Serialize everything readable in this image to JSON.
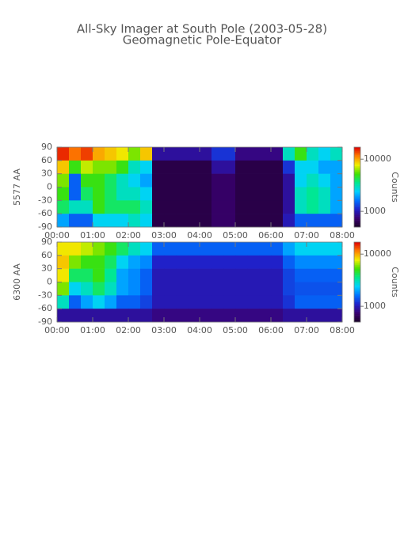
{
  "title": "All-Sky Imager at South Pole (2003-05-28)",
  "subtitle": "Geomagnetic Pole-Equator",
  "chart_data": [
    {
      "type": "heatmap",
      "ylabel": "5577 AA",
      "colorbar_label": "Counts",
      "xlim": [
        0,
        480
      ],
      "xticks": [
        {
          "value": 0,
          "label": "00:00"
        },
        {
          "value": 60,
          "label": "01:00"
        },
        {
          "value": 120,
          "label": "02:00"
        },
        {
          "value": 180,
          "label": "03:00"
        },
        {
          "value": 240,
          "label": "04:00"
        },
        {
          "value": 300,
          "label": "05:00"
        },
        {
          "value": 360,
          "label": "06:00"
        },
        {
          "value": 420,
          "label": "07:00"
        },
        {
          "value": 480,
          "label": "08:00"
        }
      ],
      "ylim": [
        -90,
        90
      ],
      "yticks": [
        90,
        60,
        30,
        0,
        -30,
        -60,
        -90
      ],
      "xbins": [
        0,
        20,
        40,
        60,
        80,
        100,
        120,
        140,
        160,
        180,
        200,
        220,
        240,
        260,
        280,
        300,
        320,
        340,
        360,
        380,
        400,
        420,
        440,
        460,
        480
      ],
      "ybins": [
        90,
        60,
        30,
        0,
        -30,
        -60,
        -90
      ],
      "zlim": [
        500,
        17000
      ],
      "zscale": "log",
      "zticks": [
        10000,
        1000
      ],
      "colorscale": [
        "#1a0026",
        "#3a0070",
        "#2020c8",
        "#0070ff",
        "#00d0ff",
        "#00e890",
        "#40e000",
        "#f0f000",
        "#ff8000",
        "#e00000"
      ],
      "values": [
        [
          15000,
          12000,
          14000,
          10000,
          9000,
          8000,
          6000,
          9000,
          900,
          900,
          900,
          900,
          900,
          1200,
          1200,
          800,
          800,
          800,
          800,
          3000,
          5000,
          3000,
          2500,
          3000
        ],
        [
          9000,
          5000,
          7000,
          6000,
          6000,
          5000,
          3000,
          2500,
          600,
          600,
          600,
          600,
          600,
          900,
          900,
          600,
          600,
          600,
          600,
          1200,
          2500,
          2500,
          2000,
          2000
        ],
        [
          6000,
          1500,
          5000,
          5000,
          4000,
          3000,
          2500,
          2000,
          600,
          600,
          600,
          600,
          600,
          700,
          700,
          600,
          600,
          600,
          600,
          900,
          2500,
          3000,
          2500,
          2000
        ],
        [
          5000,
          1500,
          4000,
          5000,
          4000,
          3000,
          3000,
          2500,
          600,
          600,
          600,
          600,
          600,
          700,
          700,
          600,
          600,
          600,
          600,
          900,
          3000,
          3500,
          3000,
          2000
        ],
        [
          4000,
          3000,
          3000,
          5000,
          4000,
          4000,
          4000,
          3000,
          600,
          600,
          600,
          600,
          600,
          700,
          700,
          600,
          600,
          600,
          600,
          900,
          3000,
          3500,
          3000,
          2000
        ],
        [
          2000,
          1500,
          1500,
          2500,
          2500,
          2500,
          3000,
          2500,
          600,
          600,
          600,
          600,
          600,
          700,
          700,
          600,
          600,
          600,
          600,
          1000,
          1500,
          1500,
          1500,
          1500
        ]
      ]
    },
    {
      "type": "heatmap",
      "ylabel": "6300 AA",
      "colorbar_label": "Counts",
      "xlim": [
        0,
        480
      ],
      "xticks": [
        {
          "value": 0,
          "label": "00:00"
        },
        {
          "value": 60,
          "label": "01:00"
        },
        {
          "value": 120,
          "label": "02:00"
        },
        {
          "value": 180,
          "label": "03:00"
        },
        {
          "value": 240,
          "label": "04:00"
        },
        {
          "value": 300,
          "label": "05:00"
        },
        {
          "value": 360,
          "label": "06:00"
        },
        {
          "value": 420,
          "label": "07:00"
        },
        {
          "value": 480,
          "label": "08:00"
        }
      ],
      "ylim": [
        -90,
        90
      ],
      "yticks": [
        90,
        60,
        30,
        0,
        -30,
        -60,
        -90
      ],
      "xbins": [
        0,
        20,
        40,
        60,
        80,
        100,
        120,
        140,
        160,
        180,
        200,
        220,
        240,
        260,
        280,
        300,
        320,
        340,
        360,
        380,
        400,
        420,
        440,
        460,
        480
      ],
      "ybins": [
        90,
        60,
        30,
        0,
        -30,
        -60,
        -90
      ],
      "zlim": [
        500,
        17000
      ],
      "zscale": "log",
      "zticks": [
        10000,
        1000
      ],
      "colorscale": [
        "#1a0026",
        "#3a0070",
        "#2020c8",
        "#0070ff",
        "#00d0ff",
        "#00e890",
        "#40e000",
        "#f0f000",
        "#ff8000",
        "#e00000"
      ],
      "values": [
        [
          8000,
          8000,
          7000,
          6000,
          5000,
          4000,
          3000,
          2500,
          1500,
          1500,
          1500,
          1500,
          1500,
          1500,
          1500,
          1500,
          1500,
          1500,
          1500,
          2000,
          2500,
          2500,
          2500,
          2500
        ],
        [
          9000,
          6000,
          5000,
          5000,
          4000,
          2500,
          2000,
          1800,
          1100,
          1100,
          1100,
          1100,
          1100,
          1100,
          1100,
          1100,
          1100,
          1100,
          1100,
          1500,
          1800,
          1800,
          1800,
          1800
        ],
        [
          8000,
          4000,
          4000,
          5000,
          3500,
          2000,
          1800,
          1500,
          1000,
          1000,
          1000,
          1000,
          1000,
          1000,
          1000,
          1000,
          1000,
          1000,
          1000,
          1300,
          1500,
          1500,
          1500,
          1500
        ],
        [
          6000,
          2500,
          3000,
          4000,
          3000,
          2000,
          1800,
          1500,
          1000,
          1000,
          1000,
          1000,
          1000,
          1000,
          1000,
          1000,
          1000,
          1000,
          1000,
          1300,
          1400,
          1400,
          1400,
          1400
        ],
        [
          3000,
          1500,
          2000,
          2500,
          2000,
          1500,
          1500,
          1300,
          1000,
          1000,
          1000,
          1000,
          1000,
          1000,
          1000,
          1000,
          1000,
          1000,
          1000,
          1200,
          1500,
          1500,
          1500,
          1500
        ],
        [
          900,
          900,
          900,
          900,
          900,
          900,
          900,
          900,
          800,
          800,
          800,
          800,
          800,
          800,
          800,
          800,
          800,
          800,
          800,
          900,
          900,
          900,
          900,
          900
        ]
      ]
    }
  ]
}
